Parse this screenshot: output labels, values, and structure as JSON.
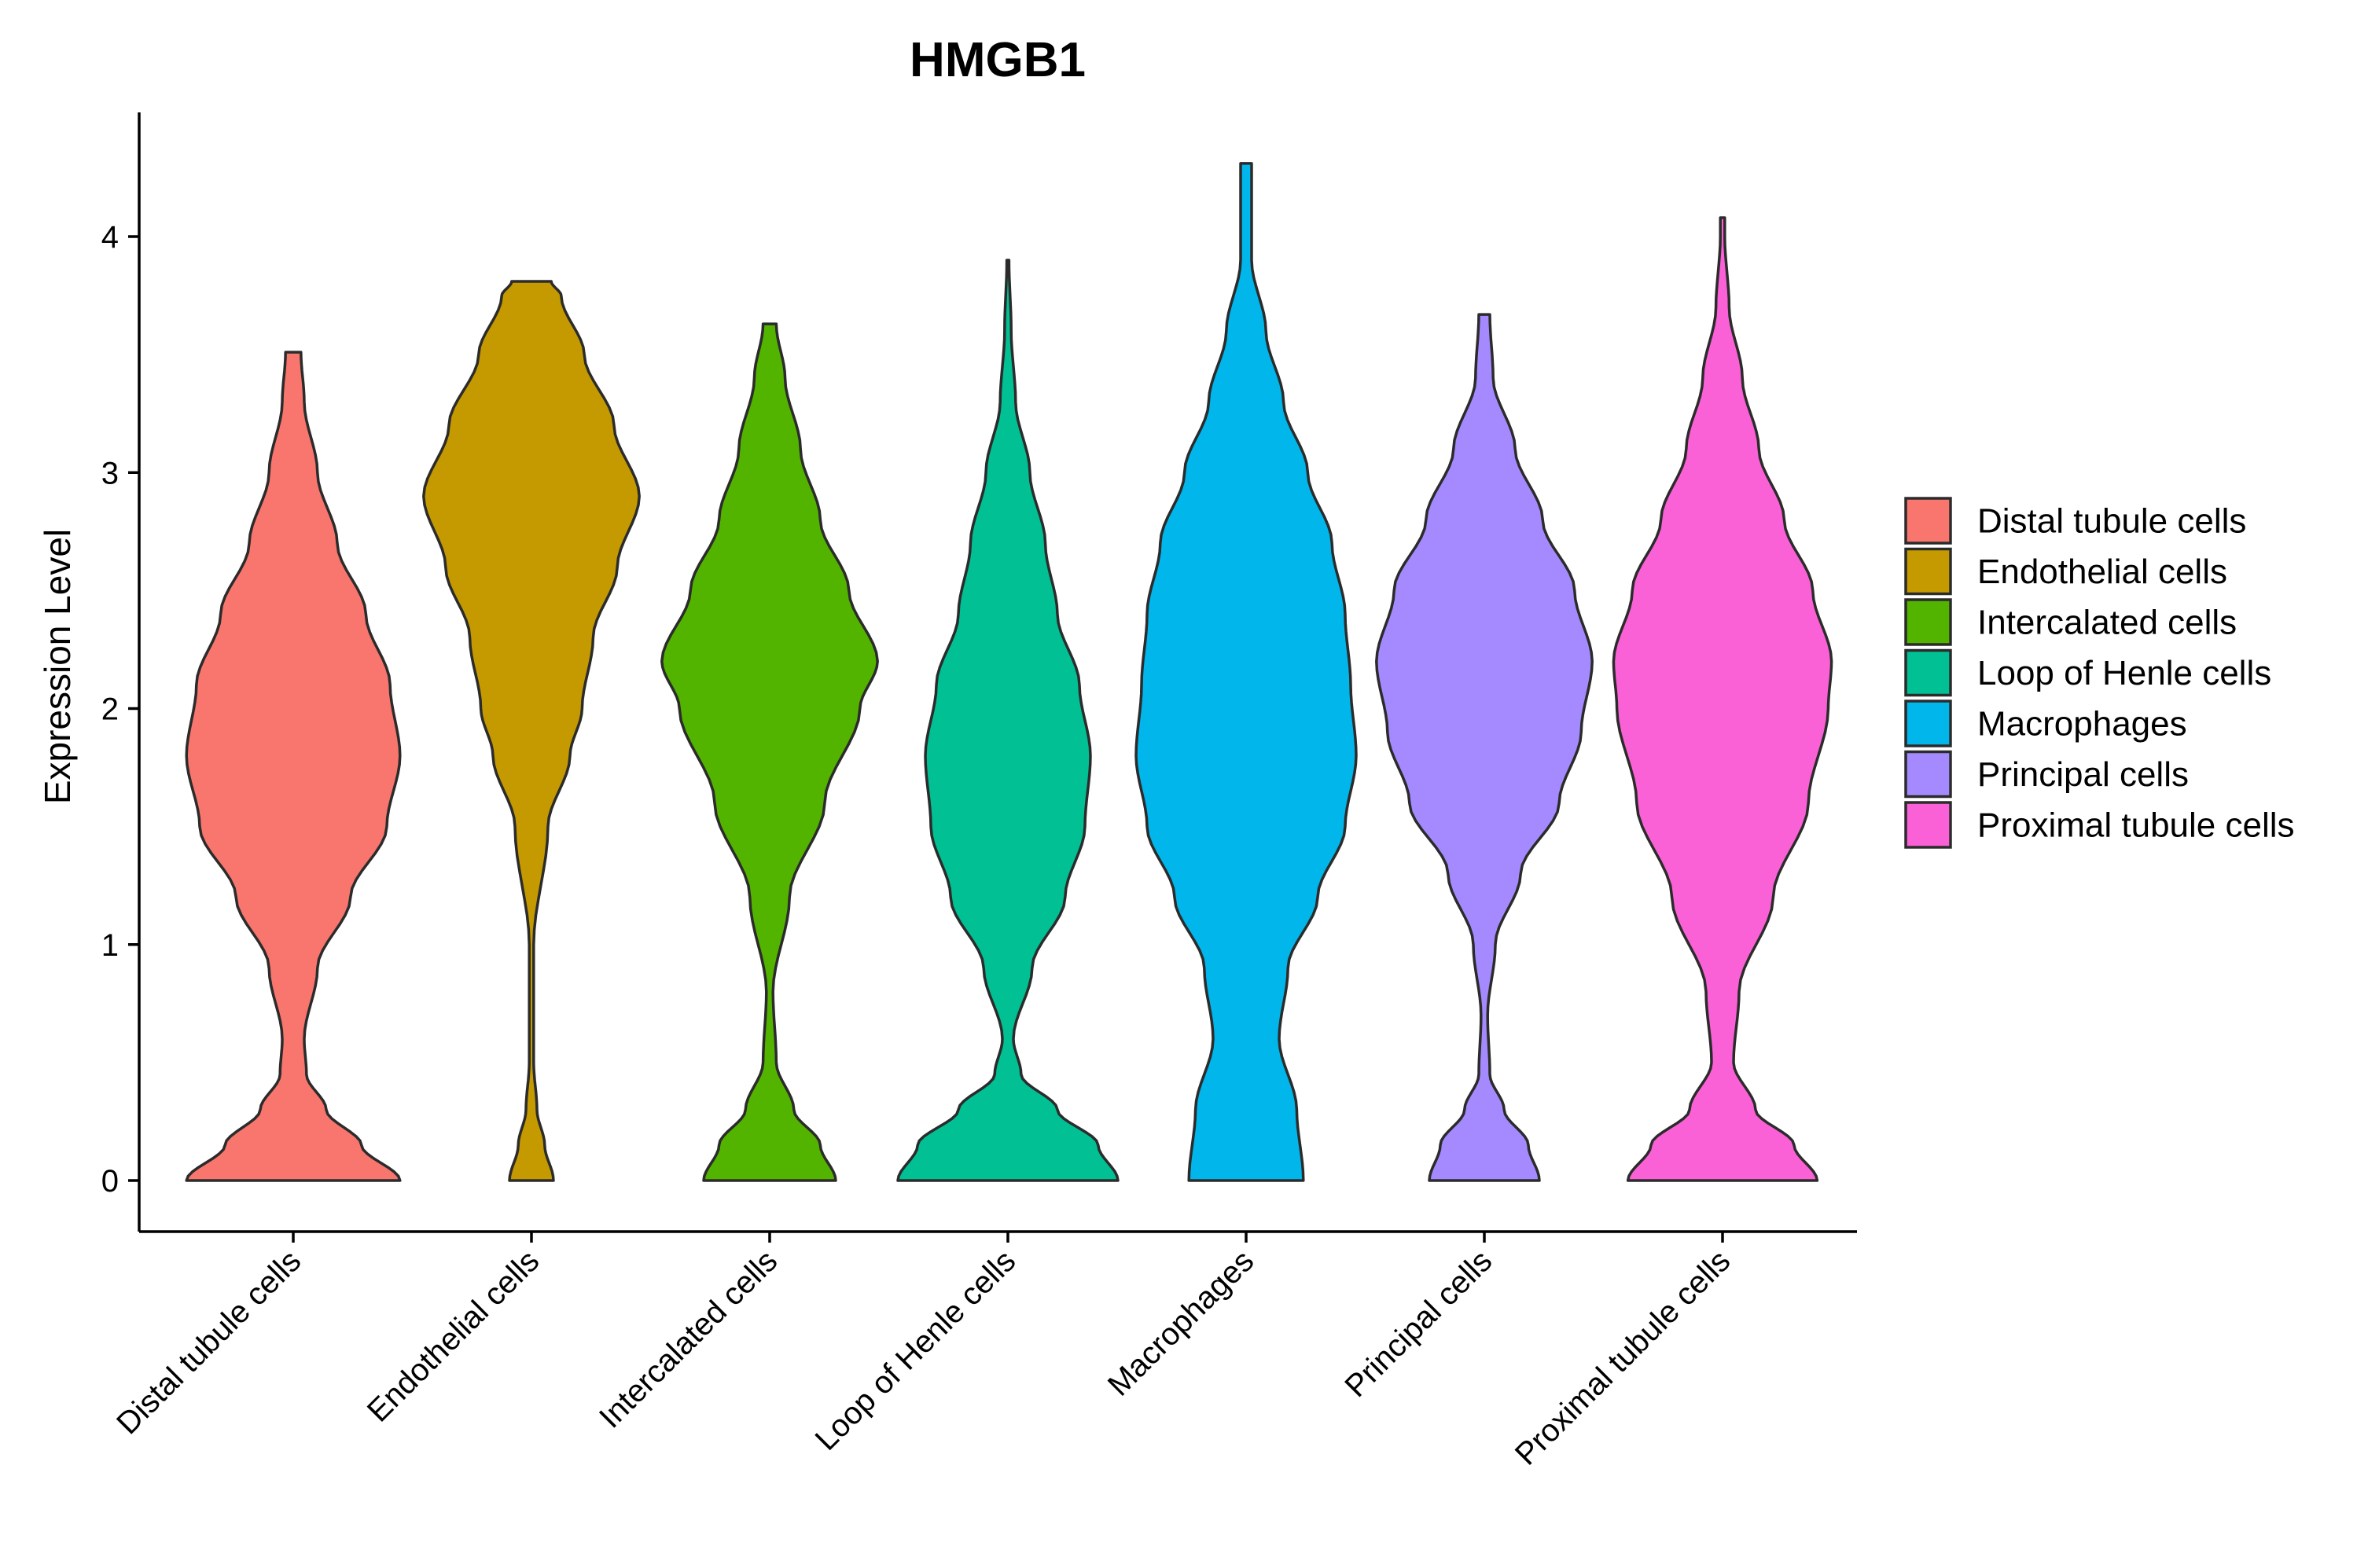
{
  "chart_data": {
    "type": "violin",
    "title": "HMGB1",
    "xlabel": "",
    "ylabel": "Expression Level",
    "ylim": [
      -0.21,
      4.5
    ],
    "yticks": [
      0,
      1,
      2,
      3,
      4
    ],
    "grid": false,
    "legend_position": "right",
    "categories": [
      "Distal tubule cells",
      "Endothelial cells",
      "Intercalated cells",
      "Loop of Henle cells",
      "Macrophages",
      "Principal cells",
      "Proximal tubule cells"
    ],
    "series": [
      {
        "name": "Distal tubule cells",
        "color": "#F8766D",
        "max": 3.51,
        "profile": [
          [
            0,
            0.97
          ],
          [
            0.15,
            0.62
          ],
          [
            0.3,
            0.3
          ],
          [
            0.45,
            0.12
          ],
          [
            0.6,
            0.1
          ],
          [
            0.9,
            0.22
          ],
          [
            1.2,
            0.52
          ],
          [
            1.5,
            0.85
          ],
          [
            1.8,
            0.97
          ],
          [
            2.1,
            0.88
          ],
          [
            2.4,
            0.66
          ],
          [
            2.7,
            0.4
          ],
          [
            3.0,
            0.22
          ],
          [
            3.3,
            0.1
          ],
          [
            3.51,
            0.07
          ]
        ]
      },
      {
        "name": "Endothelial cells",
        "color": "#C49A00",
        "max": 3.81,
        "profile": [
          [
            0,
            0.2
          ],
          [
            0.15,
            0.12
          ],
          [
            0.3,
            0.05
          ],
          [
            0.5,
            0.02
          ],
          [
            1.0,
            0.02
          ],
          [
            1.5,
            0.15
          ],
          [
            1.8,
            0.35
          ],
          [
            2.0,
            0.46
          ],
          [
            2.3,
            0.56
          ],
          [
            2.6,
            0.78
          ],
          [
            2.9,
            0.98
          ],
          [
            3.2,
            0.75
          ],
          [
            3.5,
            0.48
          ],
          [
            3.75,
            0.27
          ],
          [
            3.81,
            0.18
          ]
        ]
      },
      {
        "name": "Intercalated cells",
        "color": "#53B400",
        "max": 3.63,
        "profile": [
          [
            0,
            0.6
          ],
          [
            0.15,
            0.46
          ],
          [
            0.3,
            0.22
          ],
          [
            0.5,
            0.06
          ],
          [
            0.8,
            0.03
          ],
          [
            1.2,
            0.18
          ],
          [
            1.6,
            0.5
          ],
          [
            2.0,
            0.82
          ],
          [
            2.2,
            0.98
          ],
          [
            2.5,
            0.72
          ],
          [
            2.8,
            0.46
          ],
          [
            3.1,
            0.28
          ],
          [
            3.4,
            0.14
          ],
          [
            3.63,
            0.06
          ]
        ]
      },
      {
        "name": "Loop of Henle cells",
        "color": "#00C094",
        "max": 3.9,
        "profile": [
          [
            0,
            1.0
          ],
          [
            0.15,
            0.82
          ],
          [
            0.3,
            0.45
          ],
          [
            0.45,
            0.12
          ],
          [
            0.6,
            0.05
          ],
          [
            0.9,
            0.22
          ],
          [
            1.2,
            0.52
          ],
          [
            1.5,
            0.7
          ],
          [
            1.8,
            0.75
          ],
          [
            2.1,
            0.65
          ],
          [
            2.4,
            0.45
          ],
          [
            2.7,
            0.34
          ],
          [
            3.0,
            0.2
          ],
          [
            3.3,
            0.07
          ],
          [
            3.6,
            0.03
          ],
          [
            3.9,
            0.01
          ]
        ]
      },
      {
        "name": "Macrophages",
        "color": "#00B6EB",
        "max": 4.31,
        "profile": [
          [
            0,
            0.52
          ],
          [
            0.3,
            0.46
          ],
          [
            0.6,
            0.3
          ],
          [
            0.9,
            0.38
          ],
          [
            1.2,
            0.65
          ],
          [
            1.5,
            0.9
          ],
          [
            1.8,
            1.0
          ],
          [
            2.1,
            0.95
          ],
          [
            2.4,
            0.9
          ],
          [
            2.7,
            0.78
          ],
          [
            3.0,
            0.56
          ],
          [
            3.3,
            0.34
          ],
          [
            3.6,
            0.18
          ],
          [
            3.9,
            0.05
          ],
          [
            4.2,
            0.05
          ],
          [
            4.31,
            0.05
          ]
        ]
      },
      {
        "name": "Principal cells",
        "color": "#A58AFF",
        "max": 3.67,
        "profile": [
          [
            0,
            0.5
          ],
          [
            0.15,
            0.4
          ],
          [
            0.3,
            0.18
          ],
          [
            0.45,
            0.05
          ],
          [
            0.7,
            0.03
          ],
          [
            1.0,
            0.1
          ],
          [
            1.3,
            0.33
          ],
          [
            1.6,
            0.68
          ],
          [
            1.9,
            0.88
          ],
          [
            2.2,
            0.98
          ],
          [
            2.5,
            0.82
          ],
          [
            2.8,
            0.53
          ],
          [
            3.1,
            0.28
          ],
          [
            3.4,
            0.08
          ],
          [
            3.67,
            0.05
          ]
        ]
      },
      {
        "name": "Proximal tubule cells",
        "color": "#FB61D7",
        "max": 4.08,
        "profile": [
          [
            0,
            0.86
          ],
          [
            0.15,
            0.65
          ],
          [
            0.3,
            0.3
          ],
          [
            0.5,
            0.1
          ],
          [
            0.8,
            0.15
          ],
          [
            1.2,
            0.46
          ],
          [
            1.6,
            0.78
          ],
          [
            2.0,
            0.96
          ],
          [
            2.2,
            0.99
          ],
          [
            2.5,
            0.82
          ],
          [
            2.8,
            0.56
          ],
          [
            3.1,
            0.33
          ],
          [
            3.4,
            0.18
          ],
          [
            3.7,
            0.06
          ],
          [
            4.0,
            0.02
          ],
          [
            4.08,
            0.02
          ]
        ]
      }
    ]
  }
}
